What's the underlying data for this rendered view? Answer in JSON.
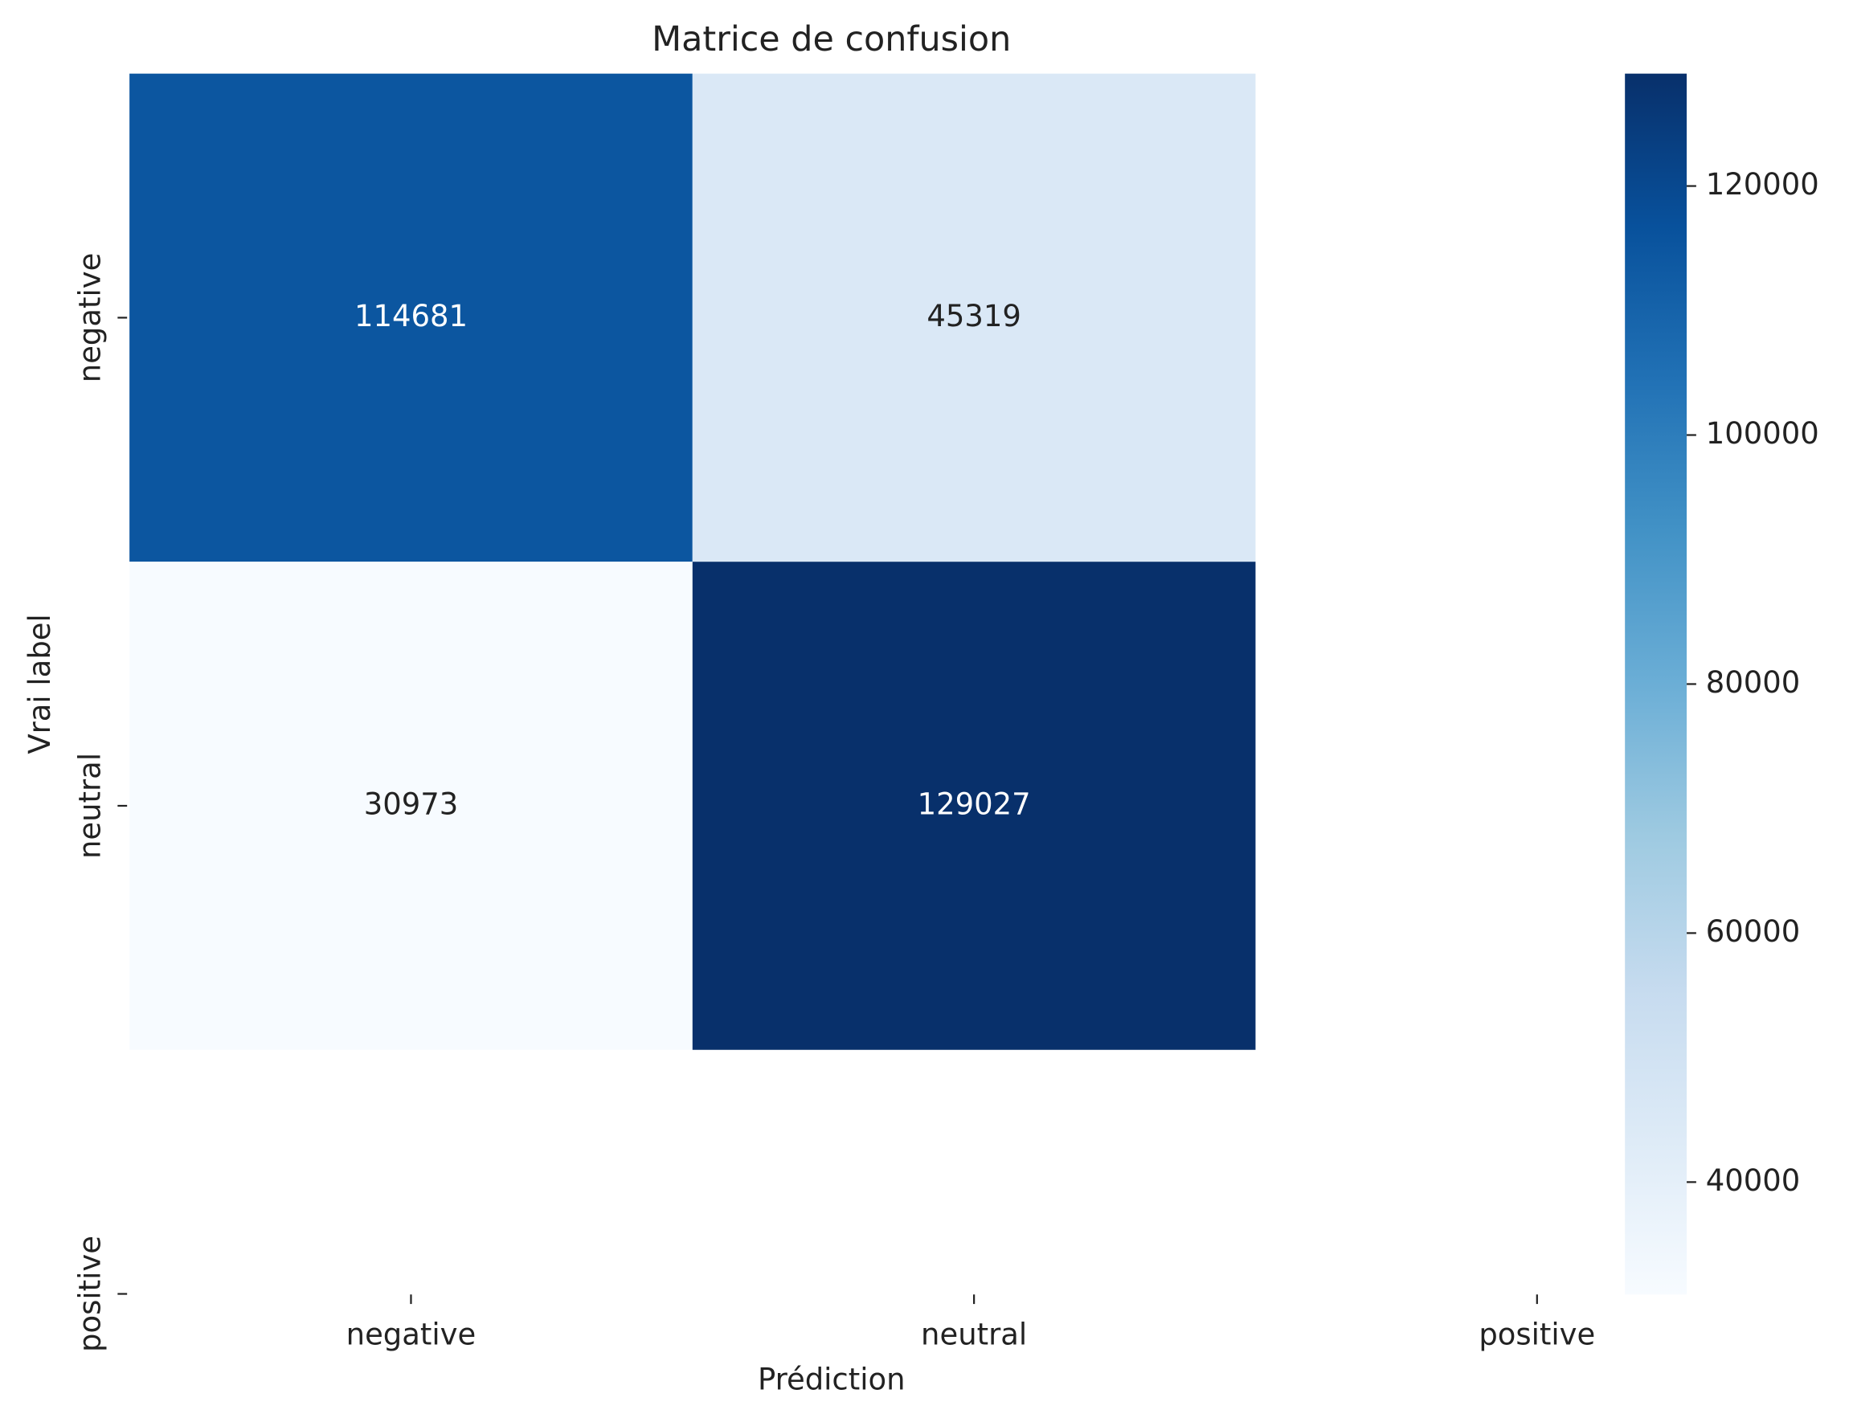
{
  "chart_data": {
    "type": "heatmap",
    "title": "Matrice de confusion",
    "x_label": "Prédiction",
    "y_label": "Vrai label",
    "x_categories": [
      "negative",
      "neutral",
      "positive"
    ],
    "y_categories": [
      "negative",
      "neutral",
      "positive"
    ],
    "values": [
      [
        114681,
        45319,
        null
      ],
      [
        30973,
        129027,
        null
      ],
      [
        null,
        null,
        null
      ]
    ],
    "colormap": "Blues",
    "clim": [
      30973,
      129027
    ],
    "colorbar_ticks": [
      40000,
      60000,
      80000,
      100000,
      120000
    ]
  }
}
